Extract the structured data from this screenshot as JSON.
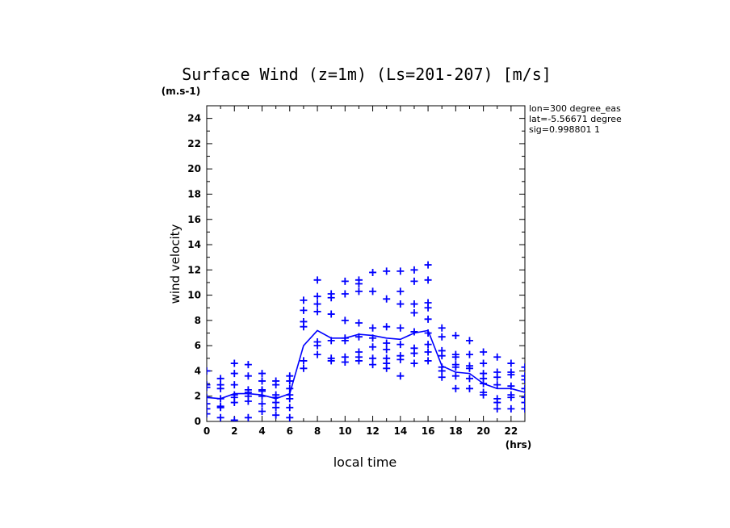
{
  "chart_data": {
    "type": "scatter",
    "title": "Surface Wind (z=1m) (Ls=201-207) [m/s]",
    "ylabel": "wind velocity",
    "yunit": "(m.s-1)",
    "xlabel": "local time",
    "xunit": "(hrs)",
    "xlim": [
      0,
      23
    ],
    "ylim": [
      0,
      25
    ],
    "xticks": [
      "0",
      "2",
      "4",
      "6",
      "8",
      "10",
      "12",
      "14",
      "16",
      "18",
      "20",
      "22"
    ],
    "yticks": [
      "0",
      "2",
      "4",
      "6",
      "8",
      "10",
      "12",
      "14",
      "16",
      "18",
      "20",
      "22",
      "24"
    ],
    "info": [
      "lon=300 degree_eas",
      "lat=-5.56671 degree",
      "sig=0.998801 1"
    ],
    "color": "#0000ff",
    "series": [
      {
        "style": "markers",
        "points": [
          [
            0,
            0.6
          ],
          [
            0,
            1.0
          ],
          [
            0,
            1.4
          ],
          [
            0,
            1.9
          ],
          [
            0,
            2.7
          ],
          [
            0,
            2.9
          ],
          [
            0,
            4.0
          ],
          [
            1,
            0.3
          ],
          [
            1,
            1.1
          ],
          [
            1,
            1.2
          ],
          [
            1,
            1.8
          ],
          [
            1,
            2.6
          ],
          [
            1,
            2.9
          ],
          [
            1,
            3.4
          ],
          [
            2,
            0.1
          ],
          [
            2,
            1.5
          ],
          [
            2,
            1.9
          ],
          [
            2,
            2.1
          ],
          [
            2,
            2.9
          ],
          [
            2,
            3.8
          ],
          [
            2,
            4.6
          ],
          [
            3,
            0.3
          ],
          [
            3,
            1.6
          ],
          [
            3,
            2.0
          ],
          [
            3,
            2.3
          ],
          [
            3,
            2.5
          ],
          [
            3,
            3.6
          ],
          [
            3,
            4.5
          ],
          [
            4,
            0.8
          ],
          [
            4,
            1.4
          ],
          [
            4,
            2.0
          ],
          [
            4,
            2.4
          ],
          [
            4,
            2.5
          ],
          [
            4,
            3.2
          ],
          [
            4,
            3.8
          ],
          [
            5,
            0.5
          ],
          [
            5,
            1.1
          ],
          [
            5,
            1.5
          ],
          [
            5,
            1.9
          ],
          [
            5,
            2.1
          ],
          [
            5,
            2.9
          ],
          [
            5,
            3.2
          ],
          [
            6,
            0.3
          ],
          [
            6,
            1.1
          ],
          [
            6,
            1.8
          ],
          [
            6,
            2.1
          ],
          [
            6,
            2.6
          ],
          [
            6,
            3.2
          ],
          [
            6,
            3.6
          ],
          [
            7,
            4.2
          ],
          [
            7,
            4.8
          ],
          [
            7,
            7.5
          ],
          [
            7,
            7.9
          ],
          [
            7,
            8.8
          ],
          [
            7,
            9.6
          ],
          [
            8,
            5.3
          ],
          [
            8,
            6.0
          ],
          [
            8,
            6.3
          ],
          [
            8,
            8.7
          ],
          [
            8,
            9.3
          ],
          [
            8,
            9.9
          ],
          [
            8,
            11.2
          ],
          [
            9,
            4.8
          ],
          [
            9,
            5.0
          ],
          [
            9,
            6.4
          ],
          [
            9,
            8.5
          ],
          [
            9,
            9.8
          ],
          [
            9,
            10.1
          ],
          [
            10,
            4.7
          ],
          [
            10,
            5.1
          ],
          [
            10,
            6.4
          ],
          [
            10,
            6.6
          ],
          [
            10,
            8.0
          ],
          [
            10,
            10.1
          ],
          [
            10,
            11.1
          ],
          [
            11,
            4.8
          ],
          [
            11,
            5.1
          ],
          [
            11,
            5.5
          ],
          [
            11,
            6.7
          ],
          [
            11,
            7.8
          ],
          [
            11,
            10.3
          ],
          [
            11,
            10.9
          ],
          [
            11,
            11.2
          ],
          [
            12,
            4.5
          ],
          [
            12,
            5.0
          ],
          [
            12,
            5.9
          ],
          [
            12,
            6.6
          ],
          [
            12,
            7.4
          ],
          [
            12,
            10.3
          ],
          [
            12,
            11.8
          ],
          [
            13,
            4.2
          ],
          [
            13,
            4.6
          ],
          [
            13,
            5.0
          ],
          [
            13,
            5.7
          ],
          [
            13,
            6.2
          ],
          [
            13,
            7.5
          ],
          [
            13,
            9.7
          ],
          [
            13,
            11.9
          ],
          [
            14,
            3.6
          ],
          [
            14,
            4.9
          ],
          [
            14,
            5.2
          ],
          [
            14,
            6.1
          ],
          [
            14,
            7.4
          ],
          [
            14,
            9.3
          ],
          [
            14,
            10.3
          ],
          [
            14,
            11.9
          ],
          [
            15,
            4.6
          ],
          [
            15,
            5.4
          ],
          [
            15,
            5.8
          ],
          [
            15,
            7.1
          ],
          [
            15,
            8.6
          ],
          [
            15,
            9.3
          ],
          [
            15,
            11.1
          ],
          [
            15,
            12.0
          ],
          [
            16,
            4.8
          ],
          [
            16,
            5.5
          ],
          [
            16,
            6.1
          ],
          [
            16,
            7.0
          ],
          [
            16,
            8.1
          ],
          [
            16,
            9.0
          ],
          [
            16,
            9.4
          ],
          [
            16,
            11.2
          ],
          [
            16,
            12.4
          ],
          [
            17,
            3.5
          ],
          [
            17,
            4.0
          ],
          [
            17,
            4.3
          ],
          [
            17,
            5.2
          ],
          [
            17,
            5.6
          ],
          [
            17,
            6.7
          ],
          [
            17,
            7.4
          ],
          [
            18,
            2.6
          ],
          [
            18,
            3.6
          ],
          [
            18,
            4.3
          ],
          [
            18,
            4.5
          ],
          [
            18,
            5.1
          ],
          [
            18,
            5.3
          ],
          [
            18,
            6.8
          ],
          [
            19,
            2.6
          ],
          [
            19,
            3.4
          ],
          [
            19,
            4.2
          ],
          [
            19,
            4.4
          ],
          [
            19,
            5.3
          ],
          [
            19,
            6.4
          ],
          [
            20,
            2.1
          ],
          [
            20,
            2.3
          ],
          [
            20,
            3.0
          ],
          [
            20,
            3.4
          ],
          [
            20,
            3.8
          ],
          [
            20,
            4.6
          ],
          [
            20,
            5.5
          ],
          [
            21,
            1.0
          ],
          [
            21,
            1.5
          ],
          [
            21,
            1.8
          ],
          [
            21,
            2.9
          ],
          [
            21,
            3.5
          ],
          [
            21,
            3.9
          ],
          [
            21,
            5.1
          ],
          [
            22,
            1.0
          ],
          [
            22,
            1.9
          ],
          [
            22,
            2.1
          ],
          [
            22,
            2.8
          ],
          [
            22,
            3.7
          ],
          [
            22,
            3.9
          ],
          [
            22,
            4.6
          ],
          [
            23,
            1.0
          ],
          [
            23,
            1.5
          ],
          [
            23,
            1.9
          ],
          [
            23,
            2.6
          ],
          [
            23,
            3.3
          ],
          [
            23,
            3.6
          ],
          [
            23,
            4.3
          ]
        ]
      },
      {
        "style": "line",
        "x": [
          0,
          1,
          2,
          3,
          4,
          5,
          6,
          7,
          8,
          9,
          10,
          11,
          12,
          13,
          14,
          15,
          16,
          17,
          18,
          19,
          20,
          21,
          22,
          23
        ],
        "y": [
          1.9,
          1.8,
          2.2,
          2.2,
          2.1,
          1.8,
          2.2,
          6.0,
          7.2,
          6.6,
          6.6,
          6.9,
          6.8,
          6.6,
          6.5,
          7.0,
          7.2,
          4.4,
          3.9,
          3.8,
          3.0,
          2.6,
          2.6,
          2.3
        ]
      }
    ]
  }
}
